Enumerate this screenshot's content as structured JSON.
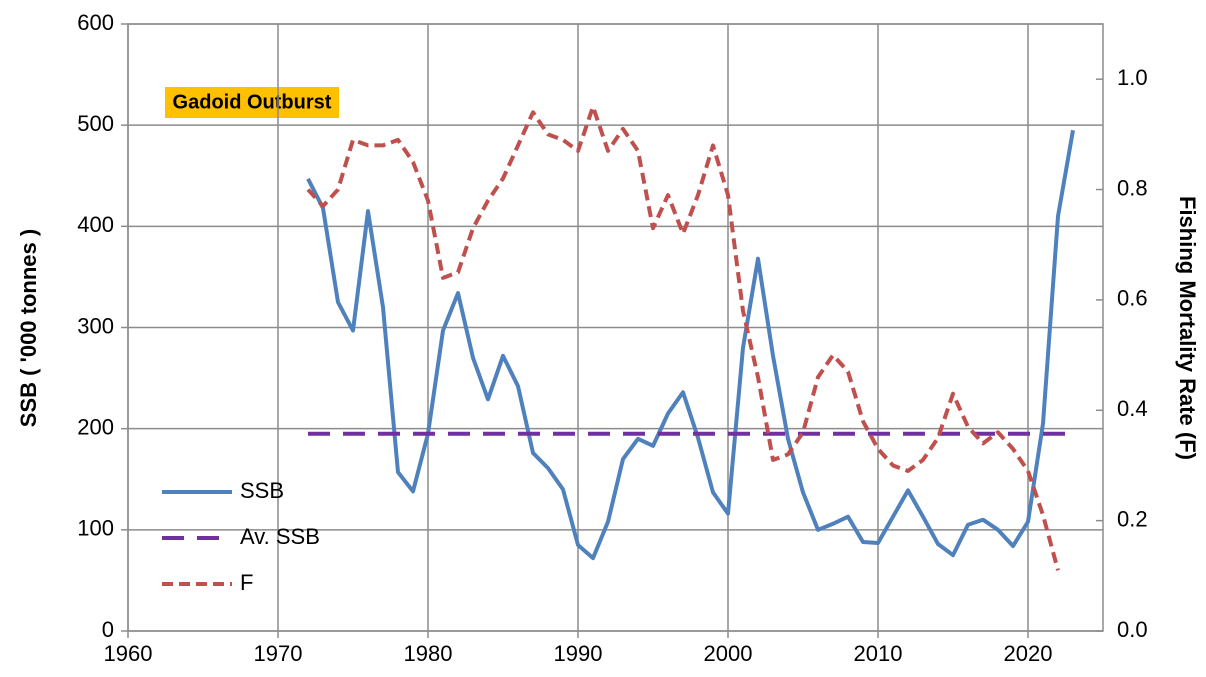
{
  "chart_data": {
    "type": "line",
    "annotation": "Gadoid Outburst",
    "ylabel": "SSB ( '000 tonnes )",
    "y2label": "Fishing Mortality Rate (F)",
    "x": [
      1972,
      1973,
      1974,
      1975,
      1976,
      1977,
      1978,
      1979,
      1980,
      1981,
      1982,
      1983,
      1984,
      1985,
      1986,
      1987,
      1988,
      1989,
      1990,
      1991,
      1992,
      1993,
      1994,
      1995,
      1996,
      1997,
      1998,
      1999,
      2000,
      2001,
      2002,
      2003,
      2004,
      2005,
      2006,
      2007,
      2008,
      2009,
      2010,
      2011,
      2012,
      2013,
      2014,
      2015,
      2016,
      2017,
      2018,
      2019,
      2020,
      2021,
      2022,
      2023
    ],
    "series": [
      {
        "name": "SSB",
        "color": "#4f81bd",
        "dash": "solid",
        "values": [
          447,
          418,
          325,
          297,
          415,
          320,
          157,
          138,
          195,
          297,
          334,
          270,
          229,
          272,
          242,
          176,
          161,
          140,
          85,
          72,
          108,
          170,
          190,
          183,
          215,
          236,
          191,
          137,
          116,
          280,
          368,
          272,
          190,
          137,
          100,
          106,
          113,
          88,
          87,
          113,
          139,
          113,
          86,
          75,
          105,
          110,
          100,
          84,
          108,
          205,
          410,
          495
        ]
      },
      {
        "name": "Av. SSB",
        "color": "#7030a0",
        "dash": "long",
        "values": [
          195,
          195,
          195,
          195,
          195,
          195,
          195,
          195,
          195,
          195,
          195,
          195,
          195,
          195,
          195,
          195,
          195,
          195,
          195,
          195,
          195,
          195,
          195,
          195,
          195,
          195,
          195,
          195,
          195,
          195,
          195,
          195,
          195,
          195,
          195,
          195,
          195,
          195,
          195,
          195,
          195,
          195,
          195,
          195,
          195,
          195,
          195,
          195,
          195,
          195,
          195,
          195
        ]
      },
      {
        "name": "F",
        "color": "#c0504d",
        "dash": "short",
        "axis": "y2",
        "values": [
          0.8,
          0.77,
          0.8,
          0.89,
          0.88,
          0.88,
          0.89,
          0.85,
          0.78,
          0.64,
          0.65,
          0.73,
          0.78,
          0.82,
          0.88,
          0.94,
          0.9,
          0.89,
          0.87,
          0.95,
          0.87,
          0.91,
          0.87,
          0.73,
          0.79,
          0.72,
          0.79,
          0.88,
          0.79,
          0.58,
          0.46,
          0.31,
          0.32,
          0.36,
          0.46,
          0.5,
          0.47,
          0.38,
          0.33,
          0.3,
          0.29,
          0.31,
          0.35,
          0.43,
          0.37,
          0.34,
          0.36,
          0.33,
          0.29,
          0.21,
          0.11,
          null
        ]
      }
    ],
    "xlim": [
      1960,
      2025
    ],
    "xticks": [
      1960,
      1970,
      1980,
      1990,
      2000,
      2010,
      2020
    ],
    "ylim": [
      0,
      600
    ],
    "yticks": [
      0,
      100,
      200,
      300,
      400,
      500,
      600
    ],
    "y2lim": [
      0,
      1.1
    ],
    "y2ticks": [
      {
        "value": 0,
        "label": "0.0"
      },
      0.2,
      0.4,
      0.6,
      0.8,
      {
        "value": 1,
        "label": "1.0"
      }
    ],
    "grid": true,
    "legend": "lower left"
  }
}
